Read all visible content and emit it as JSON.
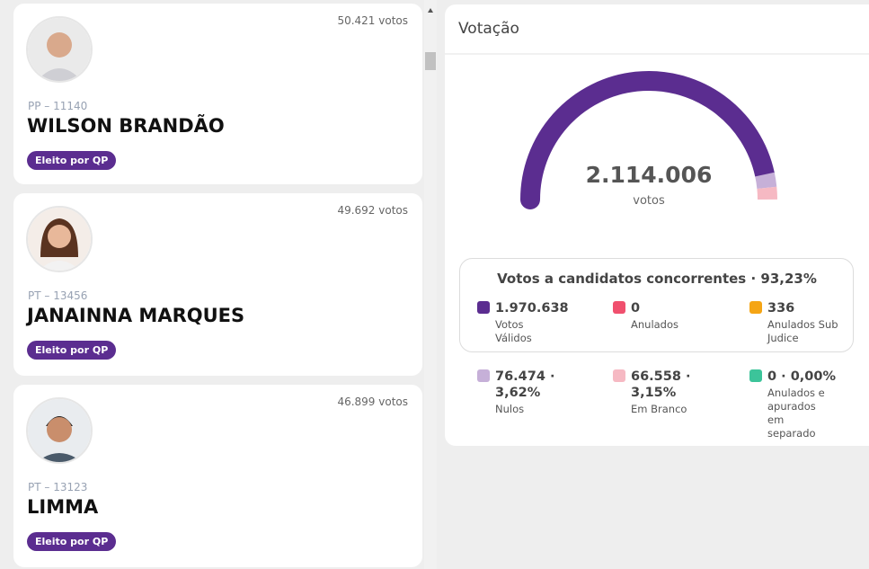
{
  "candidates": [
    {
      "votes": "50.421 votos",
      "party": "PP – 11140",
      "name": "WILSON BRANDÃO",
      "badge": "Eleito por QP"
    },
    {
      "votes": "49.692 votos",
      "party": "PT – 13456",
      "name": "JANAINNA MARQUES",
      "badge": "Eleito por QP"
    },
    {
      "votes": "46.899 votos",
      "party": "PT – 13123",
      "name": "LIMMA",
      "badge": "Eleito por QP"
    }
  ],
  "panel": {
    "title": "Votação",
    "total": {
      "value": 2114006,
      "label": "2.114.006"
    },
    "total_unit": "votos",
    "summary_title": "Votos a candidatos concorrentes · 93,23%",
    "items": [
      {
        "amount": {
          "value": 1970638,
          "label": "1.970.638"
        },
        "label": "Votos Válidos",
        "color": "#5b2d90"
      },
      {
        "amount": {
          "value": 0,
          "label": "0"
        },
        "label": "Anulados",
        "color": "#f0506e"
      },
      {
        "amount": {
          "value": 336,
          "label": "336"
        },
        "label": "Anulados Sub Judice",
        "color": "#f5a515"
      },
      {
        "amount": {
          "value": 76474,
          "label": "76.474 · 3,62%"
        },
        "label": "Nulos",
        "color": "#c6b0d8"
      },
      {
        "amount": {
          "value": 66558,
          "label": "66.558 · 3,15%"
        },
        "label": "Em Branco",
        "color": "#f6b9c3"
      },
      {
        "amount": {
          "value": 0,
          "label": "0 · 0,00%"
        },
        "label": "Anulados e apurados em separado",
        "color": "#3cc49a"
      }
    ],
    "gauge_items": [
      0,
      3,
      4
    ]
  }
}
